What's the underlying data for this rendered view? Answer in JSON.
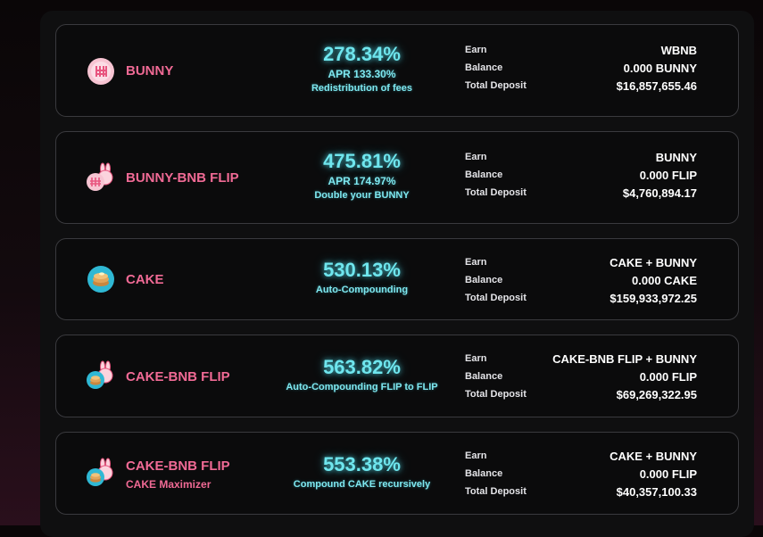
{
  "pools": [
    {
      "name": "BUNNY",
      "subname": "",
      "logo": "bunny-token-icon",
      "apy": "278.34%",
      "apr": "APR 133.30%",
      "description": "Redistribution of fees",
      "earn_label": "Earn",
      "earn": "WBNB",
      "balance_label": "Balance",
      "balance": "0.000 BUNNY",
      "deposit_label": "Total Deposit",
      "deposit": "$16,857,655.46"
    },
    {
      "name": "BUNNY-BNB FLIP",
      "subname": "",
      "logo": "bunny-bnb-flip-icon",
      "apy": "475.81%",
      "apr": "APR 174.97%",
      "description": "Double your BUNNY",
      "earn_label": "Earn",
      "earn": "BUNNY",
      "balance_label": "Balance",
      "balance": "0.000 FLIP",
      "deposit_label": "Total Deposit",
      "deposit": "$4,760,894.17"
    },
    {
      "name": "CAKE",
      "subname": "",
      "logo": "cake-token-icon",
      "apy": "530.13%",
      "apr": "",
      "description": "Auto-Compounding",
      "earn_label": "Earn",
      "earn": "CAKE + BUNNY",
      "balance_label": "Balance",
      "balance": "0.000 CAKE",
      "deposit_label": "Total Deposit",
      "deposit": "$159,933,972.25"
    },
    {
      "name": "CAKE-BNB FLIP",
      "subname": "",
      "logo": "cake-bnb-flip-icon",
      "apy": "563.82%",
      "apr": "",
      "description": "Auto-Compounding FLIP to FLIP",
      "earn_label": "Earn",
      "earn": "CAKE-BNB FLIP + BUNNY",
      "balance_label": "Balance",
      "balance": "0.000 FLIP",
      "deposit_label": "Total Deposit",
      "deposit": "$69,269,322.95"
    },
    {
      "name": "CAKE-BNB FLIP",
      "subname": "CAKE Maximizer",
      "logo": "cake-bnb-flip-icon",
      "apy": "553.38%",
      "apr": "",
      "description": "Compound CAKE recursively",
      "earn_label": "Earn",
      "earn": "CAKE + BUNNY",
      "balance_label": "Balance",
      "balance": "0.000 FLIP",
      "deposit_label": "Total Deposit",
      "deposit": "$40,357,100.33"
    }
  ],
  "colors": {
    "pool_name": "#f06a95",
    "apy": "#6fe6ee",
    "card_border": "#3a3a3e"
  }
}
